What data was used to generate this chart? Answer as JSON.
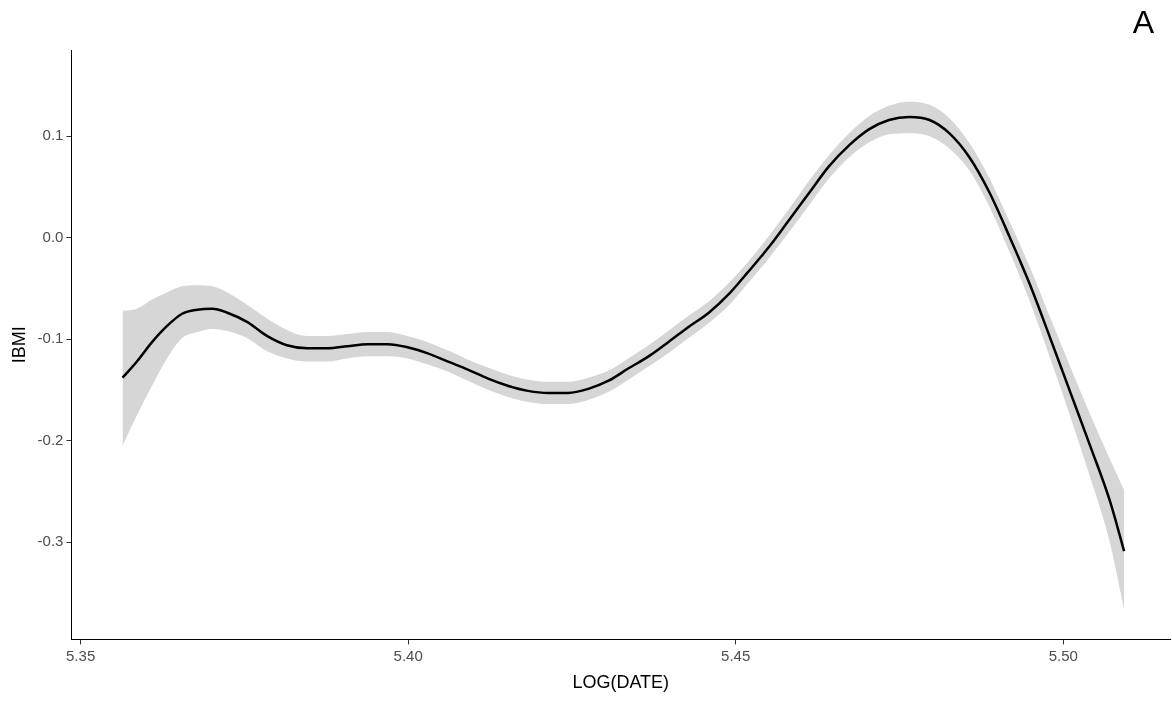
{
  "chart_data": {
    "type": "line",
    "xlabel": "LOG(DATE)",
    "ylabel": "IBMI",
    "annotations": [
      "A"
    ],
    "grid": false,
    "marker": "none",
    "line_style": "solid",
    "xlim": [
      5.3486,
      5.5163
    ],
    "ylim": [
      -0.396,
      0.185
    ],
    "xticks": [
      5.35,
      {
        "value": 5.4,
        "label": "5.40"
      },
      5.45,
      {
        "value": 5.5,
        "label": "5.50"
      }
    ],
    "yticks": [
      {
        "value": -0.3,
        "label": "-0.3"
      },
      {
        "value": -0.2,
        "label": "-0.2"
      },
      {
        "value": -0.1,
        "label": "-0.1"
      },
      {
        "value": 0,
        "label": "0.0"
      },
      {
        "value": 0.1,
        "label": "0.1"
      }
    ],
    "x": [
      5.3564,
      5.3586,
      5.3609,
      5.3632,
      5.3655,
      5.3678,
      5.3701,
      5.3724,
      5.3754,
      5.3785,
      5.3815,
      5.3846,
      5.3877,
      5.3907,
      5.3938,
      5.3969,
      5.3999,
      5.403,
      5.406,
      5.4091,
      5.4122,
      5.4152,
      5.4183,
      5.4214,
      5.4244,
      5.4275,
      5.4306,
      5.4336,
      5.4367,
      5.4397,
      5.4428,
      5.4459,
      5.4489,
      5.452,
      5.4551,
      5.4581,
      5.4612,
      5.4642,
      5.4673,
      5.4704,
      5.4734,
      5.4765,
      5.4796,
      5.4826,
      5.4857,
      5.4887,
      5.4918,
      5.4949,
      5.4979,
      5.501,
      5.5041,
      5.5071,
      5.5093
    ],
    "series": [
      {
        "color": "#000000",
        "values": [
          -0.138,
          -0.122,
          -0.103,
          -0.087,
          -0.075,
          -0.071,
          -0.07,
          -0.074,
          -0.083,
          -0.097,
          -0.106,
          -0.109,
          -0.109,
          -0.107,
          -0.105,
          -0.105,
          -0.108,
          -0.114,
          -0.122,
          -0.13,
          -0.139,
          -0.146,
          -0.151,
          -0.153,
          -0.153,
          -0.149,
          -0.141,
          -0.129,
          -0.117,
          -0.103,
          -0.088,
          -0.074,
          -0.056,
          -0.033,
          -0.009,
          0.017,
          0.044,
          0.07,
          0.091,
          0.107,
          0.116,
          0.119,
          0.116,
          0.103,
          0.079,
          0.045,
          0.001,
          -0.046,
          -0.097,
          -0.151,
          -0.205,
          -0.259,
          -0.309
        ],
        "upper": [
          -0.072,
          -0.07,
          -0.061,
          -0.054,
          -0.048,
          -0.047,
          -0.048,
          -0.054,
          -0.066,
          -0.08,
          -0.091,
          -0.097,
          -0.097,
          -0.095,
          -0.093,
          -0.093,
          -0.097,
          -0.103,
          -0.111,
          -0.12,
          -0.128,
          -0.135,
          -0.14,
          -0.142,
          -0.142,
          -0.138,
          -0.131,
          -0.119,
          -0.106,
          -0.092,
          -0.077,
          -0.063,
          -0.045,
          -0.023,
          0.002,
          0.028,
          0.056,
          0.081,
          0.103,
          0.12,
          0.13,
          0.134,
          0.131,
          0.118,
          0.093,
          0.059,
          0.016,
          -0.029,
          -0.077,
          -0.126,
          -0.174,
          -0.218,
          -0.249
        ],
        "lower": [
          -0.205,
          -0.175,
          -0.146,
          -0.119,
          -0.099,
          -0.093,
          -0.09,
          -0.092,
          -0.099,
          -0.112,
          -0.119,
          -0.122,
          -0.122,
          -0.119,
          -0.117,
          -0.117,
          -0.119,
          -0.125,
          -0.132,
          -0.141,
          -0.15,
          -0.157,
          -0.162,
          -0.164,
          -0.164,
          -0.16,
          -0.152,
          -0.14,
          -0.127,
          -0.114,
          -0.099,
          -0.084,
          -0.067,
          -0.044,
          -0.02,
          0.005,
          0.032,
          0.058,
          0.079,
          0.094,
          0.102,
          0.103,
          0.1,
          0.088,
          0.066,
          0.031,
          -0.014,
          -0.063,
          -0.117,
          -0.175,
          -0.236,
          -0.3,
          -0.367
        ]
      }
    ]
  }
}
